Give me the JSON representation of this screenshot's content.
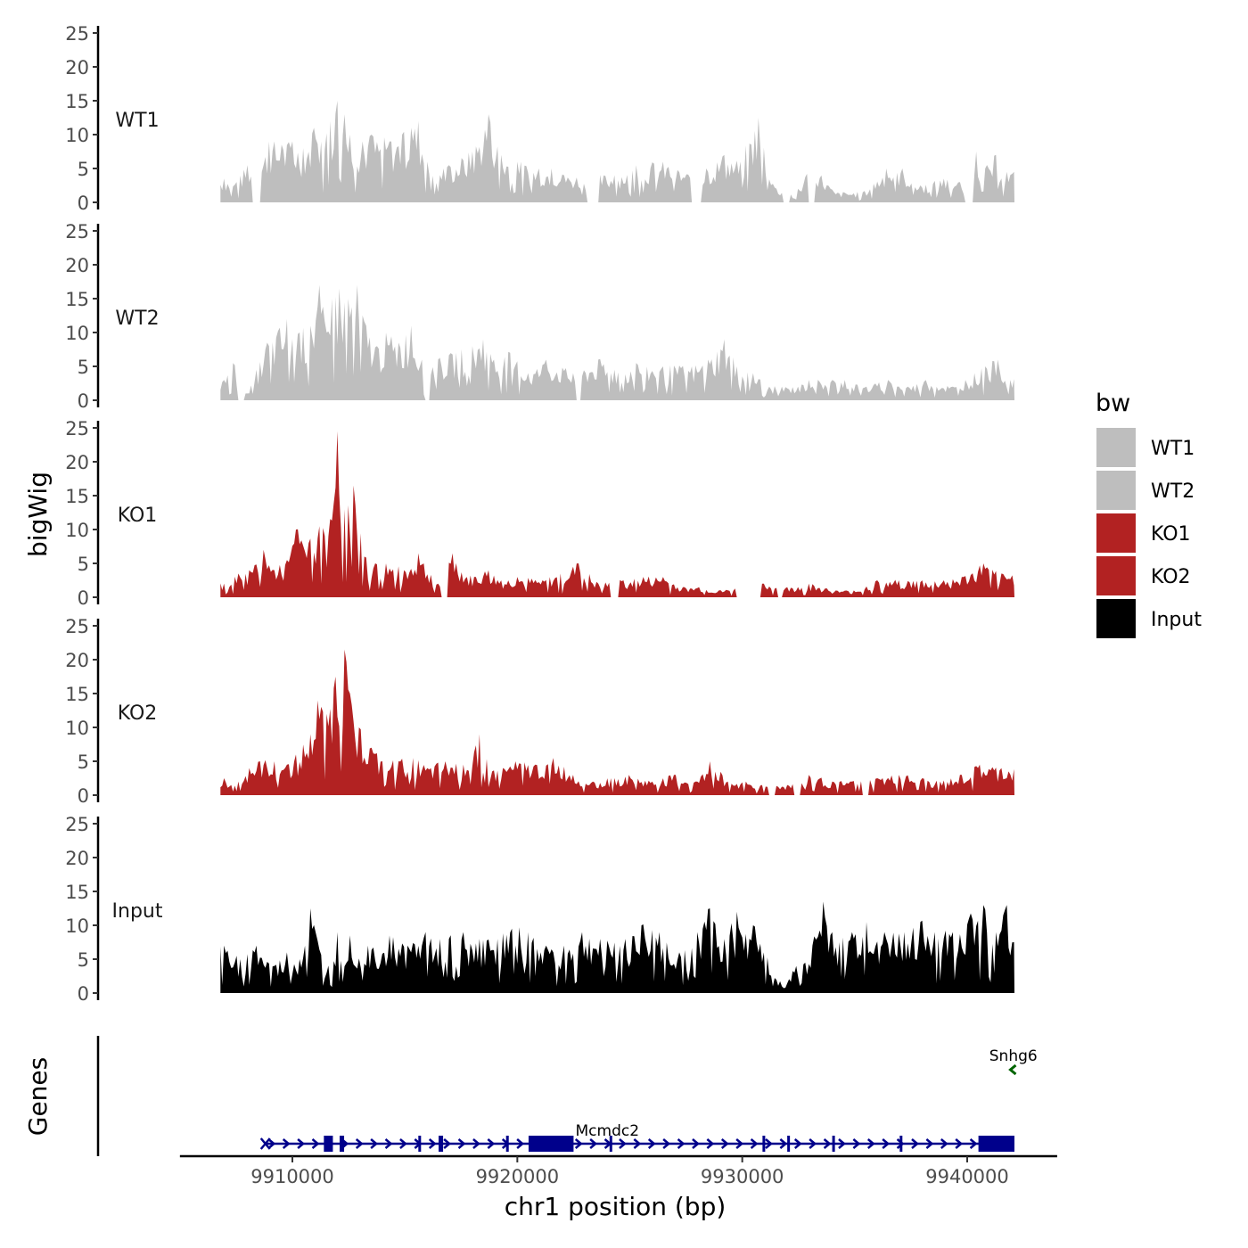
{
  "chart_data": {
    "type": "area",
    "ylabel": "bigWig",
    "xlabel": "chr1 position (bp)",
    "genes_label": "Genes",
    "xlim": [
      9905000,
      9944000
    ],
    "x_range": [
      9906800,
      9942100
    ],
    "xticks": [
      9910000,
      9920000,
      9930000,
      9940000
    ],
    "xtick_labels": [
      "9910000",
      "9920000",
      "9930000",
      "9940000"
    ],
    "ylim": [
      0,
      25
    ],
    "yticks": [
      0,
      5,
      10,
      15,
      20,
      25
    ],
    "ytick_labels": [
      "0",
      "5",
      "10",
      "15",
      "20",
      "25"
    ],
    "legend": {
      "title": "bw",
      "position": "right",
      "entries": [
        {
          "label": "WT1",
          "color": "#bebebe"
        },
        {
          "label": "WT2",
          "color": "#bebebe"
        },
        {
          "label": "KO1",
          "color": "#b22222"
        },
        {
          "label": "KO2",
          "color": "#b22222"
        },
        {
          "label": "Input",
          "color": "#000000"
        }
      ]
    },
    "series": [
      {
        "name": "WT1",
        "color": "#bebebe",
        "peaks": [
          [
            9907000,
            3.5
          ],
          [
            9907500,
            3
          ],
          [
            9908000,
            5.5
          ],
          [
            9908500,
            5
          ],
          [
            9909000,
            9
          ],
          [
            9909500,
            8.5
          ],
          [
            9910000,
            9
          ],
          [
            9910500,
            8
          ],
          [
            9911000,
            11
          ],
          [
            9911300,
            9
          ],
          [
            9911700,
            12
          ],
          [
            9912000,
            15
          ],
          [
            9912300,
            13
          ],
          [
            9912600,
            10
          ],
          [
            9913100,
            9
          ],
          [
            9913500,
            10
          ],
          [
            9914300,
            9
          ],
          [
            9914900,
            10
          ],
          [
            9915300,
            11
          ],
          [
            9915600,
            12
          ],
          [
            9916000,
            6
          ],
          [
            9916700,
            5
          ],
          [
            9917000,
            5.5
          ],
          [
            9918000,
            7.5
          ],
          [
            9918700,
            13
          ],
          [
            9919300,
            7
          ],
          [
            9920000,
            6
          ],
          [
            9921000,
            5
          ],
          [
            9921500,
            5
          ],
          [
            9922100,
            4
          ],
          [
            9923200,
            4
          ],
          [
            9924300,
            4
          ],
          [
            9925300,
            5.5
          ],
          [
            9926500,
            6
          ],
          [
            9927800,
            4
          ],
          [
            9928400,
            5
          ],
          [
            9929200,
            7
          ],
          [
            9929900,
            6
          ],
          [
            9930700,
            12.5
          ],
          [
            9931500,
            2
          ],
          [
            9932500,
            2
          ],
          [
            9933100,
            6
          ],
          [
            9934100,
            1.5
          ],
          [
            9935400,
            1.5
          ],
          [
            9936400,
            5
          ],
          [
            9937100,
            5
          ],
          [
            9937900,
            2.5
          ],
          [
            9939000,
            3.5
          ],
          [
            9939700,
            3
          ],
          [
            9940400,
            7.5
          ],
          [
            9940800,
            5
          ],
          [
            9941300,
            7
          ],
          [
            9941800,
            4.5
          ]
        ],
        "gaps": [
          [
            9908200,
            9908600
          ],
          [
            9923100,
            9923600
          ],
          [
            9927700,
            9928200
          ],
          [
            9931800,
            9932100
          ],
          [
            9932900,
            9933200
          ],
          [
            9939900,
            9940300
          ]
        ]
      },
      {
        "name": "WT2",
        "color": "#bebebe",
        "peaks": [
          [
            9907000,
            3
          ],
          [
            9907400,
            5.5
          ],
          [
            9908000,
            1
          ],
          [
            9908900,
            8.5
          ],
          [
            9909800,
            12
          ],
          [
            9910300,
            10
          ],
          [
            9910800,
            11
          ],
          [
            9911200,
            17
          ],
          [
            9911500,
            10
          ],
          [
            9911800,
            15
          ],
          [
            9912100,
            16.5
          ],
          [
            9912500,
            15
          ],
          [
            9912900,
            17
          ],
          [
            9913300,
            11
          ],
          [
            9913800,
            8
          ],
          [
            9914200,
            10
          ],
          [
            9914700,
            8.5
          ],
          [
            9915300,
            11
          ],
          [
            9915800,
            6
          ],
          [
            9916500,
            6
          ],
          [
            9917300,
            7
          ],
          [
            9918000,
            8
          ],
          [
            9918500,
            9
          ],
          [
            9919000,
            6
          ],
          [
            9919700,
            7
          ],
          [
            9920500,
            4
          ],
          [
            9921300,
            6
          ],
          [
            9922500,
            4
          ],
          [
            9923600,
            6
          ],
          [
            9924300,
            4.5
          ],
          [
            9925300,
            5.5
          ],
          [
            9926500,
            5
          ],
          [
            9927800,
            5
          ],
          [
            9928500,
            6
          ],
          [
            9929200,
            9
          ],
          [
            9929800,
            5
          ],
          [
            9930500,
            4
          ],
          [
            9931200,
            2
          ],
          [
            9931800,
            2
          ],
          [
            9932500,
            2
          ],
          [
            9933000,
            3
          ],
          [
            9934000,
            3
          ],
          [
            9934600,
            3
          ],
          [
            9935500,
            2
          ],
          [
            9936500,
            3
          ],
          [
            9937400,
            2
          ],
          [
            9938200,
            3
          ],
          [
            9939400,
            2
          ],
          [
            9939900,
            3
          ],
          [
            9940800,
            5
          ],
          [
            9941400,
            6
          ],
          [
            9941900,
            3
          ]
        ],
        "gaps": [
          [
            9907600,
            9907900
          ],
          [
            9915900,
            9916100
          ],
          [
            9922600,
            9922800
          ]
        ]
      },
      {
        "name": "KO1",
        "color": "#b22222",
        "peaks": [
          [
            9907000,
            2
          ],
          [
            9907600,
            3.5
          ],
          [
            9908100,
            4
          ],
          [
            9908700,
            7
          ],
          [
            9909200,
            4
          ],
          [
            9909800,
            5.5
          ],
          [
            9910200,
            10
          ],
          [
            9910700,
            8
          ],
          [
            9911200,
            10.5
          ],
          [
            9911600,
            9
          ],
          [
            9912000,
            24.5
          ],
          [
            9912300,
            13
          ],
          [
            9912700,
            16.5
          ],
          [
            9913200,
            6
          ],
          [
            9913700,
            5
          ],
          [
            9914200,
            5
          ],
          [
            9915000,
            4
          ],
          [
            9915600,
            6.5
          ],
          [
            9916500,
            2
          ],
          [
            9917100,
            6.5
          ],
          [
            9917800,
            3
          ],
          [
            9918700,
            4
          ],
          [
            9919300,
            2.5
          ],
          [
            9920000,
            3
          ],
          [
            9921100,
            2.5
          ],
          [
            9921900,
            3.5
          ],
          [
            9922700,
            5
          ],
          [
            9923600,
            2
          ],
          [
            9924700,
            2.5
          ],
          [
            9925600,
            3
          ],
          [
            9926500,
            3
          ],
          [
            9927400,
            1.5
          ],
          [
            9928100,
            1.5
          ],
          [
            9929000,
            1
          ],
          [
            9931000,
            2
          ],
          [
            9932000,
            1.5
          ],
          [
            9932500,
            1.5
          ],
          [
            9933000,
            2
          ],
          [
            9934200,
            1
          ],
          [
            9935000,
            1
          ],
          [
            9936000,
            2.5
          ],
          [
            9937000,
            2.5
          ],
          [
            9938000,
            2.5
          ],
          [
            9939000,
            2.5
          ],
          [
            9939800,
            3
          ],
          [
            9940700,
            5
          ],
          [
            9941500,
            3.5
          ]
        ],
        "gaps": [
          [
            9916600,
            9916900
          ],
          [
            9924100,
            9924500
          ],
          [
            9929700,
            9930800
          ],
          [
            9931600,
            9931800
          ]
        ]
      },
      {
        "name": "KO2",
        "color": "#b22222",
        "peaks": [
          [
            9907000,
            2.5
          ],
          [
            9907600,
            2
          ],
          [
            9908100,
            4
          ],
          [
            9908600,
            5
          ],
          [
            9909200,
            5
          ],
          [
            9909800,
            4.5
          ],
          [
            9910200,
            6
          ],
          [
            9910800,
            9
          ],
          [
            9911100,
            14
          ],
          [
            9911500,
            12
          ],
          [
            9911900,
            17.5
          ],
          [
            9912300,
            21.5
          ],
          [
            9912600,
            15
          ],
          [
            9913000,
            10
          ],
          [
            9913500,
            7
          ],
          [
            9914000,
            5
          ],
          [
            9914700,
            5
          ],
          [
            9915400,
            5.5
          ],
          [
            9916000,
            4
          ],
          [
            9916800,
            5
          ],
          [
            9917600,
            4.5
          ],
          [
            9918300,
            9
          ],
          [
            9918900,
            3.5
          ],
          [
            9919900,
            5
          ],
          [
            9920800,
            4.5
          ],
          [
            9921600,
            5.5
          ],
          [
            9922500,
            3
          ],
          [
            9923400,
            2
          ],
          [
            9924200,
            2.5
          ],
          [
            9925000,
            3
          ],
          [
            9926000,
            2
          ],
          [
            9927000,
            3
          ],
          [
            9928000,
            2
          ],
          [
            9928600,
            5
          ],
          [
            9929400,
            2
          ],
          [
            9930200,
            2
          ],
          [
            9930900,
            1.5
          ],
          [
            9932000,
            1.5
          ],
          [
            9933000,
            3
          ],
          [
            9934000,
            2
          ],
          [
            9934900,
            2
          ],
          [
            9936000,
            2.5
          ],
          [
            9937000,
            3
          ],
          [
            9938000,
            2.5
          ],
          [
            9938800,
            2
          ],
          [
            9939800,
            3
          ],
          [
            9940600,
            4.5
          ],
          [
            9941500,
            4
          ]
        ],
        "gaps": [
          [
            9931200,
            9931500
          ],
          [
            9932300,
            9932600
          ],
          [
            9935300,
            9935600
          ]
        ]
      },
      {
        "name": "Input",
        "color": "#000000",
        "peaks": [
          [
            9907000,
            7
          ],
          [
            9907700,
            5
          ],
          [
            9908400,
            7
          ],
          [
            9909200,
            4
          ],
          [
            9909800,
            6
          ],
          [
            9910300,
            5
          ],
          [
            9910800,
            12.5
          ],
          [
            9911500,
            3
          ],
          [
            9912000,
            9
          ],
          [
            9912600,
            8.5
          ],
          [
            9913400,
            7
          ],
          [
            9914300,
            8.5
          ],
          [
            9915100,
            7
          ],
          [
            9915900,
            9
          ],
          [
            9916600,
            8
          ],
          [
            9917600,
            9
          ],
          [
            9918300,
            8
          ],
          [
            9919100,
            8
          ],
          [
            9919800,
            9.5
          ],
          [
            9920500,
            9
          ],
          [
            9921300,
            7
          ],
          [
            9922100,
            7
          ],
          [
            9922900,
            9
          ],
          [
            9923700,
            8
          ],
          [
            9924800,
            8
          ],
          [
            9925500,
            10
          ],
          [
            9926300,
            9
          ],
          [
            9927200,
            6
          ],
          [
            9928000,
            9
          ],
          [
            9928600,
            12.5
          ],
          [
            9929200,
            8
          ],
          [
            9929800,
            12
          ],
          [
            9930500,
            10
          ],
          [
            9931000,
            6
          ],
          [
            9931800,
            1
          ],
          [
            9932400,
            4
          ],
          [
            9933100,
            7
          ],
          [
            9933600,
            13.5
          ],
          [
            9934300,
            7.5
          ],
          [
            9934900,
            9
          ],
          [
            9935500,
            10.5
          ],
          [
            9936300,
            9
          ],
          [
            9937200,
            9
          ],
          [
            9937900,
            10.5
          ],
          [
            9938600,
            9
          ],
          [
            9939400,
            9
          ],
          [
            9940100,
            11
          ],
          [
            9940700,
            13
          ],
          [
            9941300,
            9
          ],
          [
            9941800,
            13
          ],
          [
            9942100,
            7.5
          ]
        ],
        "gaps": []
      }
    ],
    "genes": [
      {
        "name": "Mcmdc2",
        "strand": "+",
        "color": "#00008b",
        "start": 9908800,
        "end": 9942100,
        "label_x": 9924000,
        "exons": [
          [
            9911400,
            9911800
          ],
          [
            9912100,
            9912300
          ],
          [
            9915600,
            9915700
          ],
          [
            9916500,
            9916700
          ],
          [
            9919500,
            9919600
          ],
          [
            9920500,
            9922500
          ],
          [
            9924100,
            9924200
          ],
          [
            9930900,
            9931000
          ],
          [
            9932000,
            9932100
          ],
          [
            9934000,
            9934100
          ],
          [
            9937000,
            9937100
          ],
          [
            9940500,
            9942100
          ]
        ]
      },
      {
        "name": "Snhg6",
        "strand": "-",
        "color": "#006400",
        "start": 9942000,
        "end": 9942100,
        "label_x": 9942050,
        "exons": []
      }
    ]
  }
}
